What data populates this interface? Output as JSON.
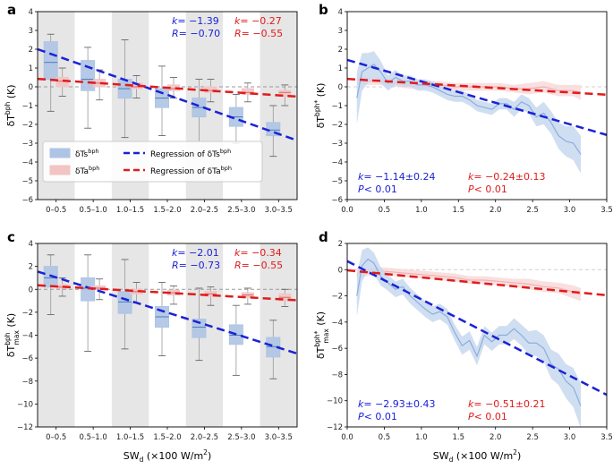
{
  "chart_data": [
    {
      "panel": "a",
      "type": "box",
      "ylabel": "δT",
      "ylabel_sup": "bph",
      "ylabel_unit": "(K)",
      "ylim": [
        -6,
        4
      ],
      "yticks": [
        "-6",
        "-5",
        "-4",
        "-3",
        "-2",
        "-1",
        "0",
        "1",
        "2",
        "3",
        "4"
      ],
      "categories": [
        "0–0.5",
        "0.5–1.0",
        "1.0–1.5",
        "1.5–2.0",
        "2.0–2.5",
        "2.5–3.0",
        "3.0–3.5"
      ],
      "shaded_categories": [
        0,
        2,
        4,
        6
      ],
      "series": [
        {
          "name": "δTs",
          "sup": "bph",
          "color": "#4a7ab8",
          "fill": "#aec4e4",
          "boxes": [
            {
              "q1": 0.4,
              "med": 1.3,
              "q3": 2.4,
              "lo": -1.3,
              "hi": 2.8
            },
            {
              "q1": -0.2,
              "med": 0.4,
              "q3": 1.4,
              "lo": -2.2,
              "hi": 2.1
            },
            {
              "q1": -0.6,
              "med": -0.1,
              "q3": 0.4,
              "lo": -2.7,
              "hi": 2.5
            },
            {
              "q1": -1.1,
              "med": -0.6,
              "q3": -0.1,
              "lo": -2.6,
              "hi": 1.1
            },
            {
              "q1": -1.6,
              "med": -1.1,
              "q3": -0.6,
              "lo": -2.9,
              "hi": 0.4
            },
            {
              "q1": -2.1,
              "med": -1.6,
              "q3": -1.1,
              "lo": -3.0,
              "hi": -0.4
            },
            {
              "q1": -2.6,
              "med": -2.3,
              "q3": -1.9,
              "lo": -3.7,
              "hi": -1.0
            }
          ]
        },
        {
          "name": "δTa",
          "sup": "bph",
          "color": "#d06a6a",
          "fill": "#f2c4c4",
          "boxes": [
            {
              "q1": 0.0,
              "med": 0.3,
              "q3": 0.5,
              "lo": -0.5,
              "hi": 1.0
            },
            {
              "q1": 0.0,
              "med": 0.2,
              "q3": 0.4,
              "lo": -0.7,
              "hi": 0.9
            },
            {
              "q1": -0.1,
              "med": 0.0,
              "q3": 0.2,
              "lo": -0.6,
              "hi": 0.6
            },
            {
              "q1": -0.2,
              "med": -0.1,
              "q3": 0.1,
              "lo": -0.6,
              "hi": 0.5
            },
            {
              "q1": -0.3,
              "med": -0.2,
              "q3": 0.0,
              "lo": -0.8,
              "hi": 0.4
            },
            {
              "q1": -0.4,
              "med": -0.3,
              "q3": -0.1,
              "lo": -0.8,
              "hi": 0.2
            },
            {
              "q1": -0.5,
              "med": -0.3,
              "q3": -0.2,
              "lo": -1.0,
              "hi": 0.1
            }
          ]
        }
      ],
      "regressions": [
        {
          "name": "Regression of δTs",
          "sup": "bph",
          "color": "#1a22d6",
          "y_start": 2.0,
          "y_end": -2.85
        },
        {
          "name": "Regression of δTa",
          "sup": "bph",
          "color": "#e01b1b",
          "y_start": 0.42,
          "y_end": -0.52
        }
      ],
      "annotations": [
        {
          "label": "k",
          "text": "= −1.39",
          "color": "#1a22d6"
        },
        {
          "label": "R",
          "text": "= −0.70",
          "color": "#1a22d6"
        },
        {
          "label": "k",
          "text": "= −0.27",
          "color": "#e01b1b"
        },
        {
          "label": "R",
          "text": "= −0.55",
          "color": "#e01b1b"
        }
      ],
      "legend": {
        "box_entries": [
          {
            "name": "δTs",
            "sup": "bph"
          },
          {
            "name": "δTa",
            "sup": "bph"
          }
        ],
        "line_entries": [
          {
            "name": "Regression of δTs",
            "sup": "bph"
          },
          {
            "name": "Regression of δTa",
            "sup": "bph"
          }
        ]
      }
    },
    {
      "panel": "b",
      "type": "line",
      "ylabel": "δT",
      "ylabel_sup": "bph*",
      "ylabel_unit": "(K)",
      "ylim": [
        -6,
        4
      ],
      "xlim": [
        0,
        3.5
      ],
      "yticks": [
        "-6",
        "-5",
        "-4",
        "-3",
        "-2",
        "-1",
        "0",
        "1",
        "2",
        "3",
        "4"
      ],
      "xticks": [
        "0.0",
        "0.5",
        "1.0",
        "1.5",
        "2.0",
        "2.5",
        "3.0",
        "3.5"
      ],
      "series": [
        {
          "name": "δTs",
          "color": "#8aaede",
          "band": "#c8d8ef",
          "x": [
            0.13,
            0.2,
            0.28,
            0.36,
            0.45,
            0.55,
            0.65,
            0.75,
            0.85,
            0.95,
            1.05,
            1.15,
            1.25,
            1.35,
            1.45,
            1.55,
            1.65,
            1.75,
            1.85,
            1.95,
            2.05,
            2.15,
            2.25,
            2.35,
            2.45,
            2.55,
            2.65,
            2.75,
            2.85,
            2.95,
            3.05,
            3.15
          ],
          "y": [
            -0.6,
            0.8,
            1.0,
            1.2,
            0.8,
            0.2,
            0.5,
            0.3,
            0.3,
            0.1,
            0.1,
            0.0,
            -0.2,
            -0.4,
            -0.5,
            -0.5,
            -0.7,
            -1.0,
            -1.1,
            -1.2,
            -0.9,
            -0.9,
            -1.2,
            -0.8,
            -1.0,
            -1.6,
            -1.4,
            -1.9,
            -2.6,
            -2.9,
            -3.0,
            -3.6
          ],
          "err": [
            1.4,
            1.0,
            0.8,
            0.7,
            0.6,
            0.4,
            0.4,
            0.3,
            0.3,
            0.3,
            0.3,
            0.3,
            0.3,
            0.3,
            0.3,
            0.3,
            0.3,
            0.3,
            0.3,
            0.3,
            0.3,
            0.3,
            0.4,
            0.4,
            0.4,
            0.5,
            0.6,
            0.6,
            0.7,
            0.8,
            0.9,
            1.0
          ]
        },
        {
          "name": "δTa",
          "color": "#f1b1b1",
          "band": "#f8d9d9",
          "x": [
            0.13,
            0.25,
            0.45,
            0.65,
            0.85,
            1.05,
            1.25,
            1.45,
            1.65,
            1.85,
            2.05,
            2.25,
            2.45,
            2.65,
            2.85,
            3.05,
            3.15
          ],
          "y": [
            0.4,
            0.3,
            0.3,
            0.2,
            0.1,
            0.1,
            0.1,
            0.0,
            0.0,
            0.0,
            0.0,
            -0.1,
            -0.1,
            0.0,
            -0.2,
            -0.2,
            -0.3
          ],
          "err": [
            0.3,
            0.2,
            0.2,
            0.2,
            0.2,
            0.2,
            0.2,
            0.2,
            0.2,
            0.2,
            0.2,
            0.2,
            0.3,
            0.3,
            0.3,
            0.3,
            0.4
          ]
        }
      ],
      "regressions": [
        {
          "color": "#1a22d6",
          "x": [
            0,
            3.5
          ],
          "y": [
            1.43,
            -2.56
          ]
        },
        {
          "color": "#e01b1b",
          "x": [
            0,
            3.5
          ],
          "y": [
            0.42,
            -0.42
          ]
        }
      ],
      "annotations": [
        {
          "label": "k",
          "text": "= −1.14±0.24",
          "color": "#1a22d6"
        },
        {
          "label": "P",
          "text": "< 0.01",
          "color": "#1a22d6"
        },
        {
          "label": "k",
          "text": "= −0.24±0.13",
          "color": "#e01b1b"
        },
        {
          "label": "P",
          "text": "< 0.01",
          "color": "#e01b1b"
        }
      ]
    },
    {
      "panel": "c",
      "type": "box",
      "ylabel": "δT",
      "ylabel_sup": "bph",
      "ylabel_sub": "max",
      "ylabel_unit": "(K)",
      "xlabel": "SW",
      "xlabel_sub": "d",
      "xlabel_unit": "(×100 W/m",
      "xlabel_sup": "2",
      "xlabel_close": ")",
      "ylim": [
        -12,
        4
      ],
      "yticks": [
        "-12",
        "-10",
        "-8",
        "-6",
        "-4",
        "-2",
        "0",
        "2",
        "4"
      ],
      "categories": [
        "0–0.5",
        "0.5–1.0",
        "1.0–1.5",
        "1.5–2.0",
        "2.0–2.5",
        "2.5–3.0",
        "3.0–3.5"
      ],
      "shaded_categories": [
        0,
        2,
        4,
        6
      ],
      "series": [
        {
          "name": "δTs",
          "color": "#4a7ab8",
          "fill": "#aec4e4",
          "boxes": [
            {
              "q1": 0.2,
              "med": 1.0,
              "q3": 2.0,
              "lo": -2.2,
              "hi": 3.0
            },
            {
              "q1": -1.0,
              "med": 0.1,
              "q3": 1.0,
              "lo": -5.4,
              "hi": 3.0
            },
            {
              "q1": -2.1,
              "med": -1.1,
              "q3": -0.2,
              "lo": -5.2,
              "hi": 2.6
            },
            {
              "q1": -3.3,
              "med": -2.4,
              "q3": -1.5,
              "lo": -5.8,
              "hi": 0.6
            },
            {
              "q1": -4.2,
              "med": -3.3,
              "q3": -2.6,
              "lo": -6.2,
              "hi": 0.1
            },
            {
              "q1": -4.8,
              "med": -4.0,
              "q3": -3.1,
              "lo": -7.5,
              "hi": -1.4
            },
            {
              "q1": -5.9,
              "med": -5.0,
              "q3": -4.2,
              "lo": -7.8,
              "hi": -2.7
            }
          ]
        },
        {
          "name": "δTa",
          "color": "#d06a6a",
          "fill": "#f2c4c4",
          "boxes": [
            {
              "q1": 0.1,
              "med": 0.2,
              "q3": 0.4,
              "lo": -0.6,
              "hi": 1.0
            },
            {
              "q1": 0.0,
              "med": 0.1,
              "q3": 0.3,
              "lo": -0.9,
              "hi": 0.9
            },
            {
              "q1": -0.4,
              "med": -0.2,
              "q3": 0.0,
              "lo": -1.2,
              "hi": 0.6
            },
            {
              "q1": -0.5,
              "med": -0.3,
              "q3": -0.1,
              "lo": -1.3,
              "hi": 0.3
            },
            {
              "q1": -0.6,
              "med": -0.4,
              "q3": -0.2,
              "lo": -1.4,
              "hi": 0.2
            },
            {
              "q1": -0.7,
              "med": -0.5,
              "q3": -0.3,
              "lo": -1.3,
              "hi": 0.1
            },
            {
              "q1": -1.0,
              "med": -0.7,
              "q3": -0.4,
              "lo": -1.5,
              "hi": 0.0
            }
          ]
        }
      ],
      "regressions": [
        {
          "color": "#1a22d6",
          "y_start": 1.55,
          "y_end": -5.6
        },
        {
          "color": "#e01b1b",
          "y_start": 0.35,
          "y_end": -0.95
        }
      ],
      "annotations": [
        {
          "label": "k",
          "text": "= −2.01",
          "color": "#1a22d6"
        },
        {
          "label": "R",
          "text": "= −0.73",
          "color": "#1a22d6"
        },
        {
          "label": "k",
          "text": "= −0.34",
          "color": "#e01b1b"
        },
        {
          "label": "R",
          "text": "= −0.55",
          "color": "#e01b1b"
        }
      ]
    },
    {
      "panel": "d",
      "type": "line",
      "ylabel": "δT",
      "ylabel_sup": "bph*",
      "ylabel_sub": "max",
      "ylabel_unit": "(K)",
      "xlabel": "SW",
      "xlabel_sub": "d",
      "xlabel_unit": "(×100 W/m",
      "xlabel_sup": "2",
      "xlabel_close": ")",
      "ylim": [
        -12,
        2
      ],
      "xlim": [
        0,
        3.5
      ],
      "yticks": [
        "-12",
        "-10",
        "-8",
        "-6",
        "-4",
        "-2",
        "0",
        "2"
      ],
      "xticks": [
        "0.0",
        "0.5",
        "1.0",
        "1.5",
        "2.0",
        "2.5",
        "3.0",
        "3.5"
      ],
      "series": [
        {
          "name": "δTs",
          "color": "#8aaede",
          "band": "#c8d8ef",
          "x": [
            0.13,
            0.2,
            0.28,
            0.36,
            0.45,
            0.55,
            0.65,
            0.75,
            0.85,
            0.95,
            1.05,
            1.15,
            1.25,
            1.35,
            1.45,
            1.55,
            1.65,
            1.75,
            1.85,
            1.95,
            2.05,
            2.15,
            2.25,
            2.35,
            2.45,
            2.55,
            2.65,
            2.75,
            2.85,
            2.95,
            3.05,
            3.15
          ],
          "y": [
            -2.0,
            0.3,
            0.8,
            0.5,
            -0.5,
            -1.0,
            -1.5,
            -1.3,
            -2.0,
            -2.5,
            -3.0,
            -3.4,
            -3.2,
            -3.6,
            -4.8,
            -5.8,
            -5.4,
            -6.6,
            -5.0,
            -5.5,
            -5.0,
            -5.0,
            -4.5,
            -5.0,
            -5.6,
            -5.6,
            -6.0,
            -7.2,
            -7.6,
            -8.5,
            -9.0,
            -10.4
          ],
          "err": [
            1.6,
            1.2,
            0.9,
            0.8,
            0.7,
            0.6,
            0.6,
            0.6,
            0.6,
            0.6,
            0.6,
            0.6,
            0.6,
            0.6,
            0.6,
            0.7,
            0.7,
            0.7,
            0.7,
            0.7,
            0.7,
            0.7,
            0.8,
            0.8,
            0.9,
            1.0,
            1.0,
            1.1,
            1.2,
            1.3,
            1.5,
            1.7
          ]
        },
        {
          "name": "δTa",
          "color": "#f1b1b1",
          "band": "#f8d9d9",
          "x": [
            0.13,
            0.25,
            0.45,
            0.65,
            0.85,
            1.05,
            1.25,
            1.45,
            1.65,
            1.85,
            2.05,
            2.25,
            2.45,
            2.65,
            2.85,
            3.05,
            3.15
          ],
          "y": [
            -0.3,
            -0.2,
            -0.1,
            -0.2,
            -0.3,
            -0.4,
            -0.5,
            -0.6,
            -0.8,
            -0.8,
            -0.9,
            -1.0,
            -1.1,
            -1.3,
            -1.4,
            -1.7,
            -1.9
          ],
          "err": [
            0.4,
            0.3,
            0.3,
            0.3,
            0.3,
            0.3,
            0.3,
            0.3,
            0.3,
            0.3,
            0.3,
            0.3,
            0.4,
            0.4,
            0.4,
            0.5,
            0.5
          ]
        }
      ],
      "regressions": [
        {
          "color": "#1a22d6",
          "x": [
            0,
            3.5
          ],
          "y": [
            0.65,
            -9.55
          ]
        },
        {
          "color": "#e01b1b",
          "x": [
            0,
            3.5
          ],
          "y": [
            -0.05,
            -1.95
          ]
        }
      ],
      "annotations": [
        {
          "label": "k",
          "text": "= −2.93±0.43",
          "color": "#1a22d6"
        },
        {
          "label": "P",
          "text": "< 0.01",
          "color": "#1a22d6"
        },
        {
          "label": "k",
          "text": "= −0.51±0.21",
          "color": "#e01b1b"
        },
        {
          "label": "P",
          "text": "< 0.01",
          "color": "#e01b1b"
        }
      ]
    }
  ]
}
